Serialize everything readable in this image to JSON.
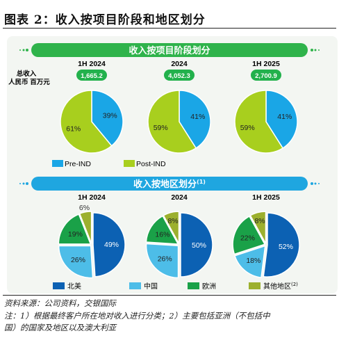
{
  "figure_title": "图表 2：收入按项目阶段和地区划分",
  "source": "资料来源：公司资料，交银国际",
  "note_line1": "注：1）根据最终客户所在地对收入进行分类；2）主要包括亚洲（不包括中",
  "note_line2": "国）的国家及地区以及澳大利亚",
  "colors": {
    "banner_green": "#2fb34b",
    "banner_blue": "#1fa6e0",
    "pre_ind": "#1aa6e6",
    "post_ind": "#a8cf1e",
    "north_america": "#0c61b3",
    "china": "#4dbde8",
    "europe": "#1aa148",
    "other": "#9cb02e",
    "total_pill": "#22b14c"
  },
  "chart_data": [
    {
      "type": "pie",
      "banner": "收入按项目阶段划分",
      "side_label_line1": "总收入",
      "side_label_line2": "人民币 百万元",
      "legend": [
        "Pre-IND",
        "Post-IND"
      ],
      "periods": [
        {
          "label": "1H 2024",
          "total": "1,665.2",
          "values": [
            39,
            61
          ],
          "labels": [
            "39%",
            "61%"
          ]
        },
        {
          "label": "2024",
          "total": "4,052.3",
          "values": [
            41,
            59
          ],
          "labels": [
            "41%",
            "59%"
          ]
        },
        {
          "label": "1H 2025",
          "total": "2,700.9",
          "values": [
            41,
            59
          ],
          "labels": [
            "41%",
            "59%"
          ]
        }
      ]
    },
    {
      "type": "pie",
      "banner": "收入按地区划分",
      "banner_sup": "(1)",
      "legend": [
        "北美",
        "中国",
        "欧洲",
        "其他地区"
      ],
      "legend_sup": [
        null,
        null,
        null,
        "(2)"
      ],
      "periods": [
        {
          "label": "1H 2024",
          "values": [
            49,
            26,
            19,
            6
          ],
          "labels": [
            "49%",
            "26%",
            "19%",
            "6%"
          ]
        },
        {
          "label": "2024",
          "values": [
            50,
            26,
            16,
            8
          ],
          "labels": [
            "50%",
            "26%",
            "16%",
            "8%"
          ]
        },
        {
          "label": "1H 2025",
          "values": [
            52,
            18,
            22,
            8
          ],
          "labels": [
            "52%",
            "18%",
            "22%",
            "8%"
          ]
        }
      ]
    }
  ]
}
